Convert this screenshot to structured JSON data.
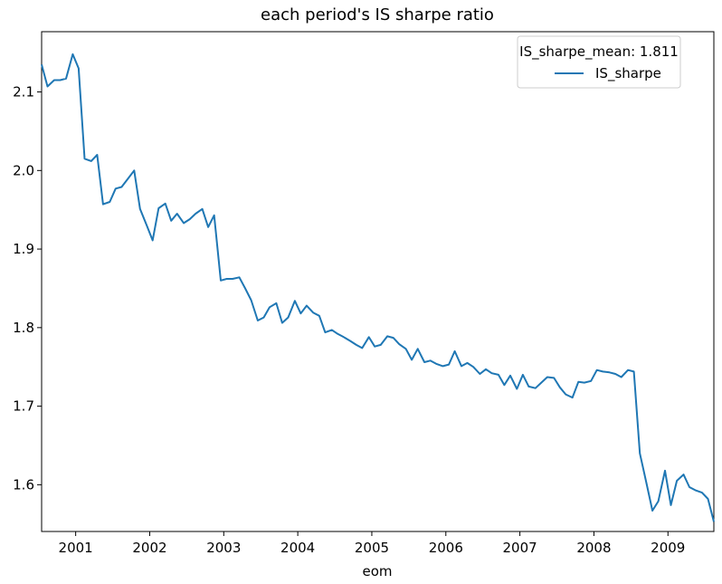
{
  "chart_data": {
    "type": "line",
    "title": "each period's IS sharpe ratio",
    "xlabel": "eom",
    "ylabel": "",
    "xlim": [
      2000.54,
      2009.62
    ],
    "ylim": [
      1.5405,
      2.1767
    ],
    "x_ticks": [
      2001,
      2002,
      2003,
      2004,
      2005,
      2006,
      2007,
      2008,
      2009
    ],
    "x_tick_labels": [
      "2001",
      "2002",
      "2003",
      "2004",
      "2005",
      "2006",
      "2007",
      "2008",
      "2009"
    ],
    "y_ticks": [
      1.6,
      1.7,
      1.8,
      1.9,
      2.0,
      2.1
    ],
    "y_tick_labels": [
      "1.6",
      "1.7",
      "1.8",
      "1.9",
      "2.0",
      "2.1"
    ],
    "grid": false,
    "legend": {
      "placement": "top-right",
      "title": "IS_sharpe_mean: 1.811",
      "entries": [
        "IS_sharpe"
      ]
    },
    "series": [
      {
        "name": "IS_sharpe",
        "color": "#1f77b4",
        "x": [
          2000.54,
          2000.62,
          2000.71,
          2000.79,
          2000.87,
          2000.96,
          2001.04,
          2001.12,
          2001.21,
          2001.29,
          2001.37,
          2001.46,
          2001.54,
          2001.62,
          2001.71,
          2001.79,
          2001.87,
          2001.96,
          2002.04,
          2002.12,
          2002.21,
          2002.29,
          2002.37,
          2002.46,
          2002.54,
          2002.62,
          2002.71,
          2002.79,
          2002.87,
          2002.96,
          2003.04,
          2003.12,
          2003.21,
          2003.29,
          2003.37,
          2003.46,
          2003.54,
          2003.62,
          2003.71,
          2003.79,
          2003.87,
          2003.96,
          2004.04,
          2004.12,
          2004.21,
          2004.29,
          2004.37,
          2004.46,
          2004.54,
          2004.62,
          2004.71,
          2004.79,
          2004.87,
          2004.96,
          2005.04,
          2005.12,
          2005.21,
          2005.29,
          2005.37,
          2005.46,
          2005.54,
          2005.62,
          2005.71,
          2005.79,
          2005.87,
          2005.96,
          2006.04,
          2006.12,
          2006.21,
          2006.29,
          2006.37,
          2006.46,
          2006.54,
          2006.62,
          2006.71,
          2006.79,
          2006.87,
          2006.96,
          2007.04,
          2007.12,
          2007.21,
          2007.29,
          2007.37,
          2007.46,
          2007.54,
          2007.62,
          2007.71,
          2007.79,
          2007.87,
          2007.96,
          2008.04,
          2008.12,
          2008.21,
          2008.29,
          2008.37,
          2008.46,
          2008.54,
          2008.62,
          2008.71,
          2008.79,
          2008.87,
          2008.96,
          2009.04,
          2009.12,
          2009.21,
          2009.29,
          2009.37,
          2009.46,
          2009.54,
          2009.62
        ],
        "y": [
          2.135,
          2.107,
          2.115,
          2.115,
          2.117,
          2.148,
          2.13,
          2.015,
          2.012,
          2.02,
          1.957,
          1.96,
          1.977,
          1.979,
          1.99,
          2.0,
          1.951,
          1.93,
          1.911,
          1.952,
          1.958,
          1.936,
          1.945,
          1.933,
          1.938,
          1.945,
          1.951,
          1.928,
          1.943,
          1.86,
          1.862,
          1.862,
          1.864,
          1.85,
          1.835,
          1.809,
          1.813,
          1.826,
          1.831,
          1.806,
          1.813,
          1.834,
          1.818,
          1.828,
          1.819,
          1.815,
          1.794,
          1.797,
          1.792,
          1.788,
          1.783,
          1.778,
          1.774,
          1.788,
          1.776,
          1.778,
          1.789,
          1.787,
          1.779,
          1.773,
          1.759,
          1.773,
          1.756,
          1.758,
          1.754,
          1.751,
          1.753,
          1.77,
          1.751,
          1.755,
          1.75,
          1.741,
          1.747,
          1.742,
          1.74,
          1.727,
          1.739,
          1.722,
          1.74,
          1.725,
          1.723,
          1.73,
          1.737,
          1.736,
          1.724,
          1.715,
          1.711,
          1.731,
          1.73,
          1.732,
          1.746,
          1.744,
          1.743,
          1.741,
          1.737,
          1.746,
          1.744,
          1.64,
          1.602,
          1.567,
          1.579,
          1.618,
          1.574,
          1.605,
          1.613,
          1.597,
          1.593,
          1.59,
          1.582,
          1.553
        ]
      }
    ]
  }
}
